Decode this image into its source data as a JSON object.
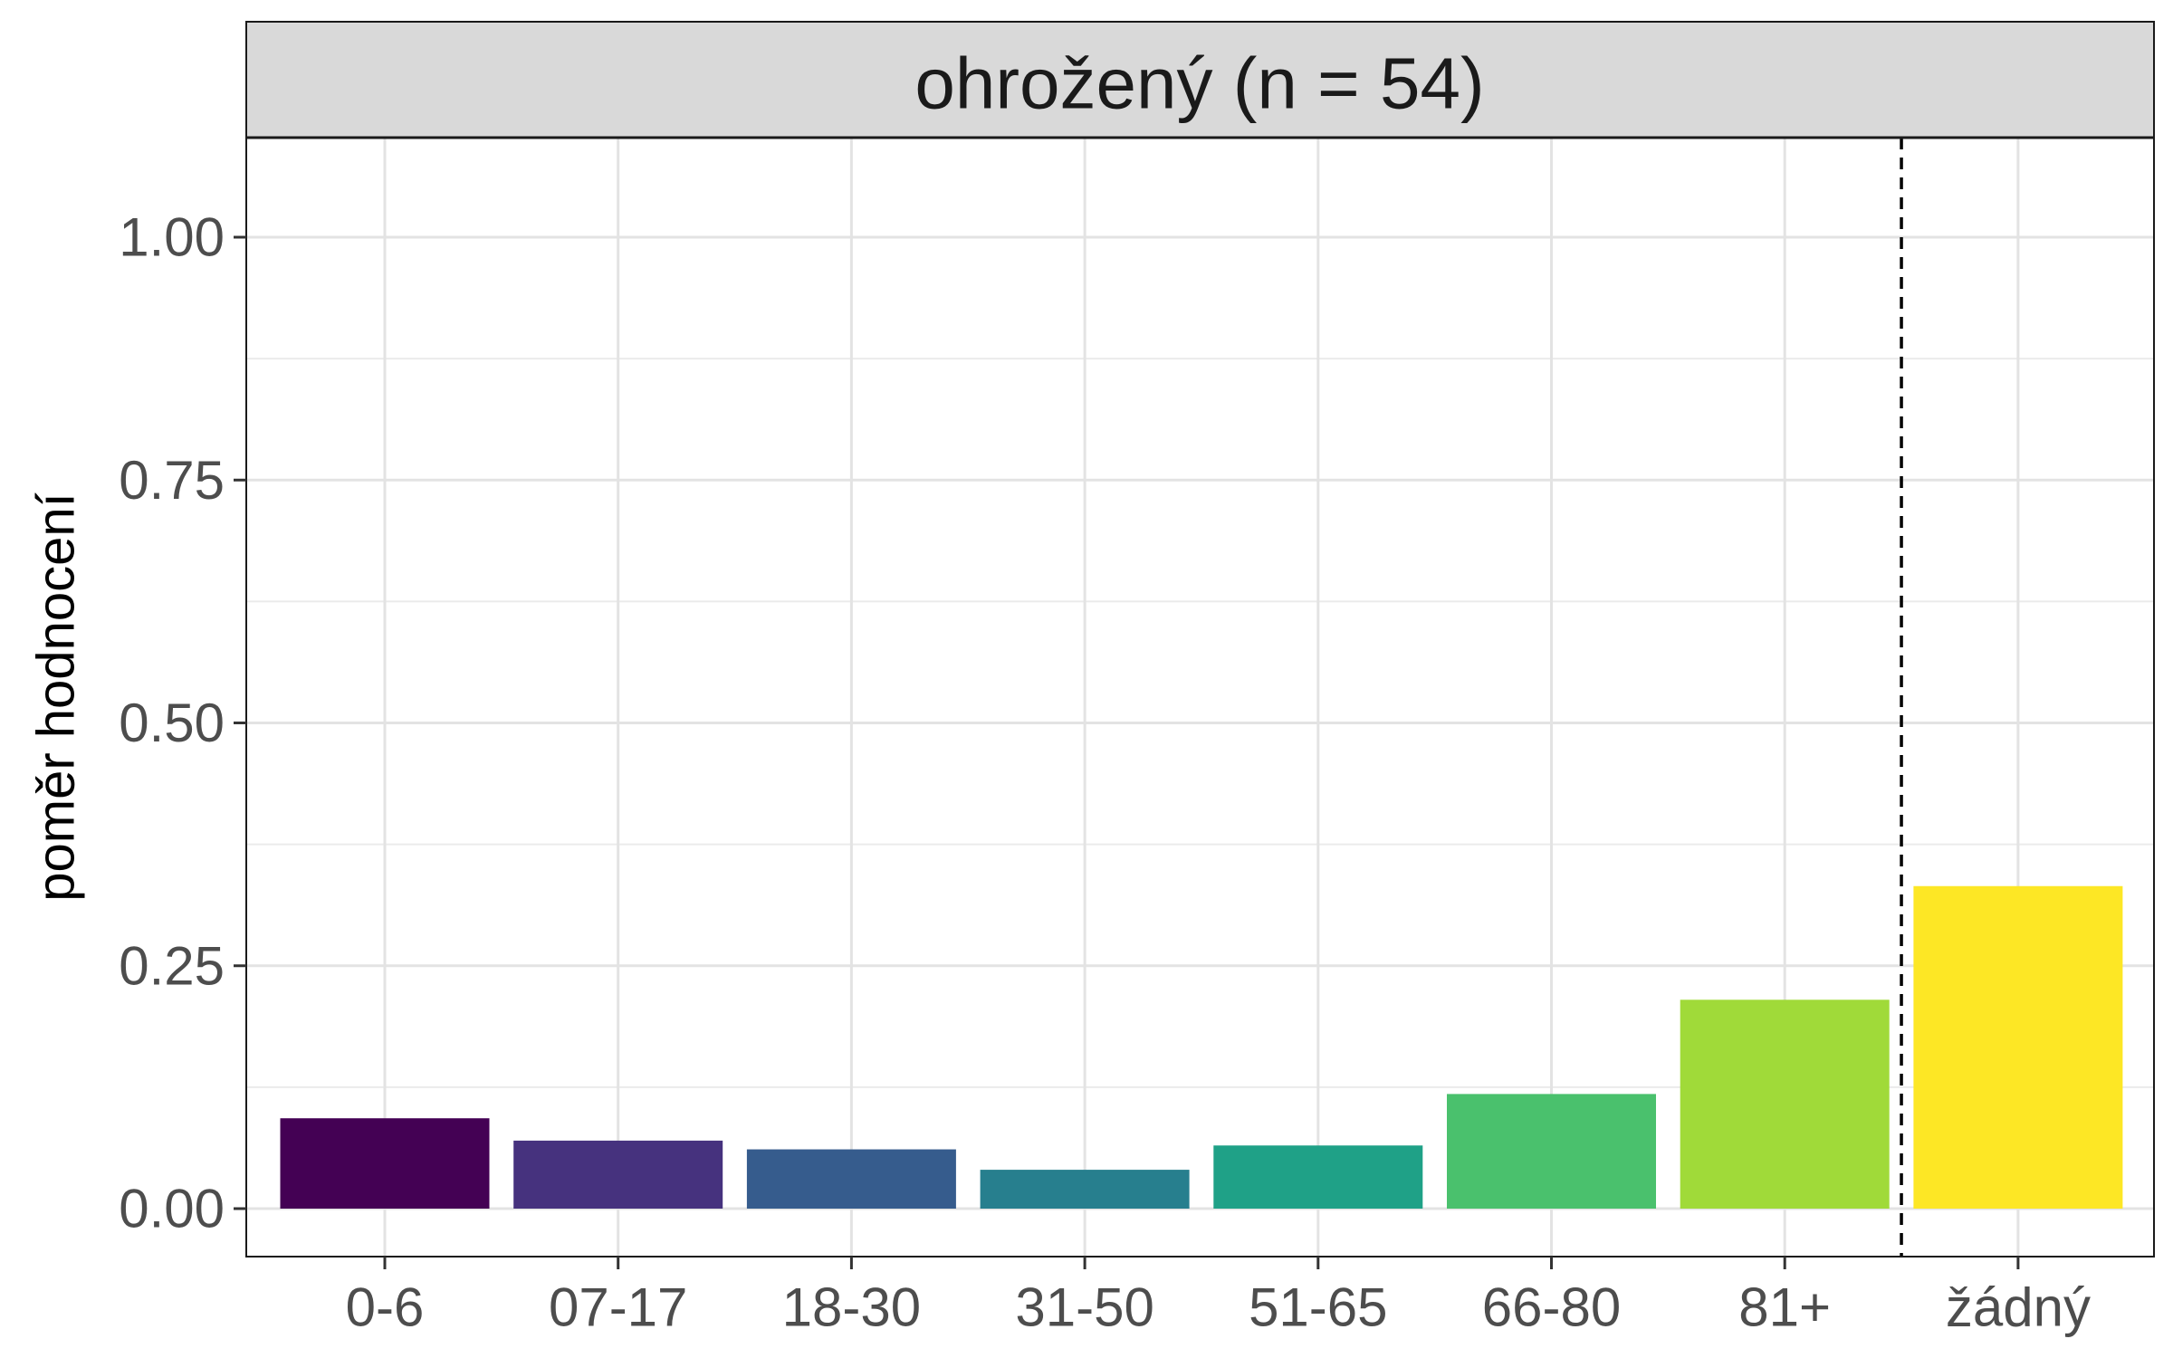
{
  "chart_data": {
    "type": "bar",
    "facet_title": "ohrožený (n = 54)",
    "xlabel": "",
    "ylabel": "poměr hodnocení",
    "categories": [
      "0-6",
      "07-17",
      "18-30",
      "31-50",
      "51-65",
      "66-80",
      "81+",
      "žádný"
    ],
    "values": [
      0.093,
      0.07,
      0.061,
      0.04,
      0.065,
      0.118,
      0.215,
      0.332
    ],
    "colors": [
      "#440154",
      "#46327E",
      "#365C8D",
      "#277F8E",
      "#1FA187",
      "#4AC16D",
      "#A0DA39",
      "#FDE725"
    ],
    "ylim": [
      -0.05,
      1.1
    ],
    "yticks": [
      "0.00",
      "0.25",
      "0.50",
      "0.75",
      "1.00"
    ],
    "ytick_values": [
      0,
      0.25,
      0.5,
      0.75,
      1.0
    ],
    "reference_line": {
      "between": [
        "81+",
        "žádný"
      ],
      "style": "dashed"
    },
    "grid": true,
    "legend": "none"
  }
}
